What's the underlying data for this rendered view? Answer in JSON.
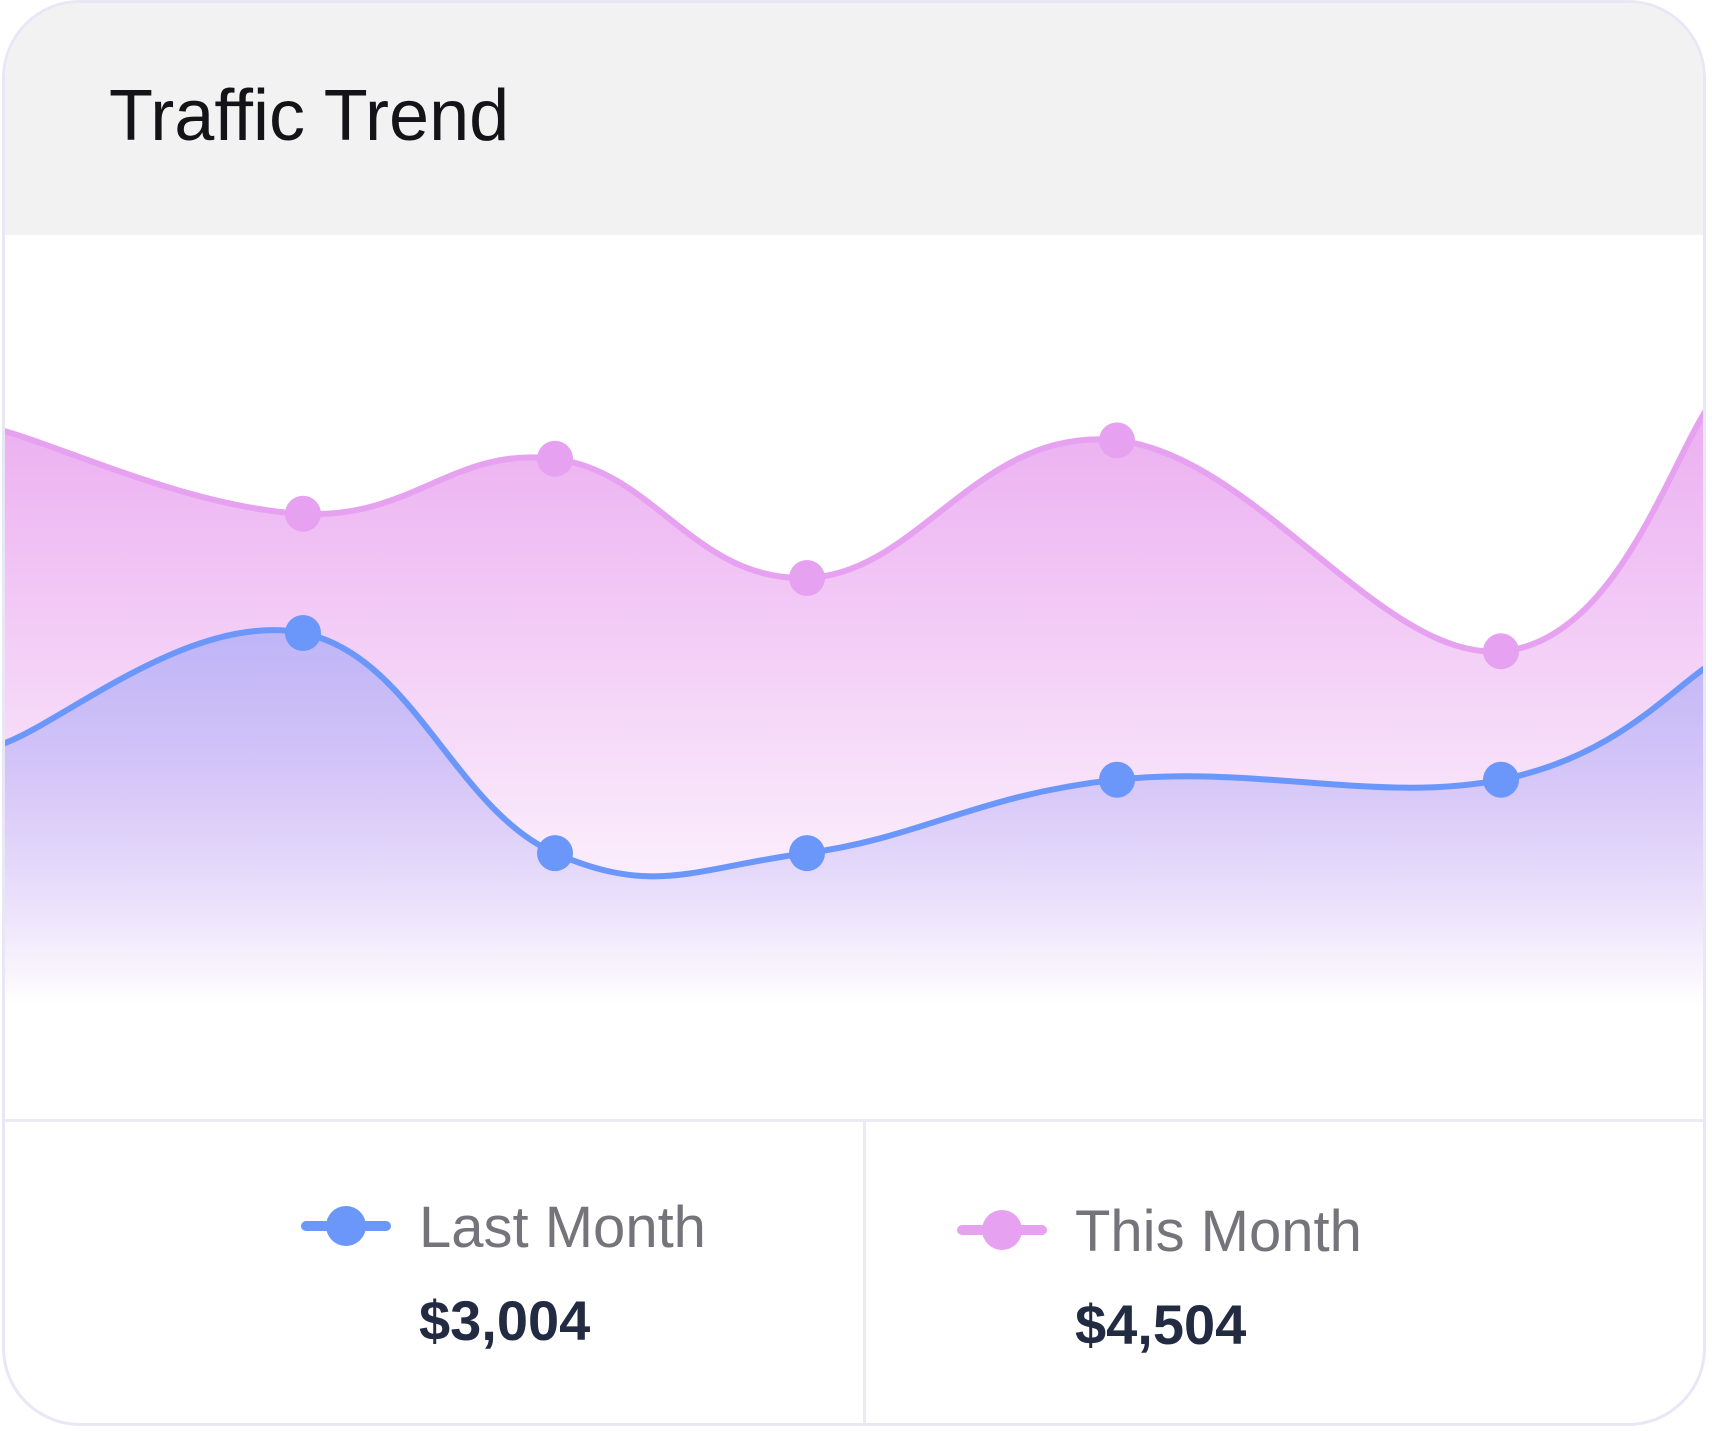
{
  "card": {
    "title": "Traffic Trend"
  },
  "colors": {
    "last_month_line": "#6b97fa",
    "this_month_line": "#e6a2f0",
    "last_month_fill": "#bcb4f7",
    "this_month_fill": "#eaa8f0",
    "header_background": "#f2f2f3"
  },
  "legend": [
    {
      "label": "Last Month",
      "value": "$3,004",
      "color": "#6b97fa"
    },
    {
      "label": "This Month",
      "value": "$4,504",
      "color": "#e6a2f0"
    }
  ],
  "chart_data": {
    "type": "area",
    "title": "Traffic Trend",
    "xlabel": "",
    "ylabel": "",
    "curve": "smooth",
    "grid": false,
    "axes_visible": false,
    "legend_position": "bottom",
    "ylim": [
      0,
      100
    ],
    "x": [
      0,
      1,
      2,
      3,
      4,
      5,
      6
    ],
    "marker_indices": [
      1,
      2,
      3,
      4,
      5
    ],
    "series": [
      {
        "name": "This Month",
        "color": "#e6a2f0",
        "values": [
          75,
          66,
          72,
          59,
          74,
          51,
          79
        ]
      },
      {
        "name": "Last Month",
        "color": "#6b97fa",
        "values": [
          41,
          53,
          29,
          29,
          37,
          37,
          50
        ]
      }
    ]
  }
}
